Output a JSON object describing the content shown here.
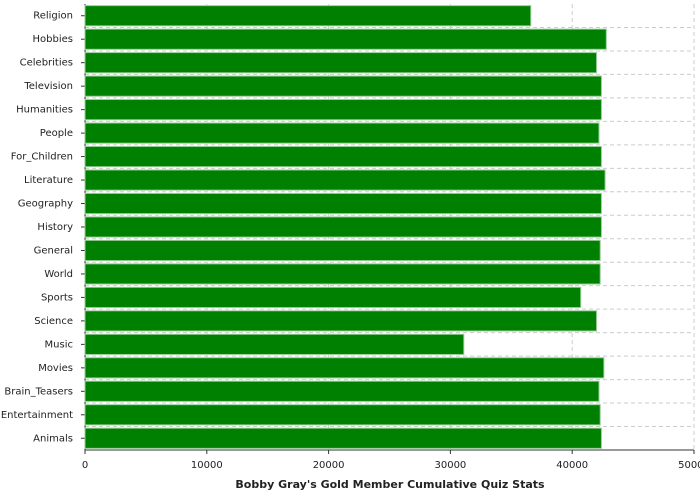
{
  "chart_data": {
    "type": "bar",
    "orientation": "horizontal",
    "title": "Bobby Gray's Gold Member Cumulative Quiz Stats",
    "categories": [
      "Religion",
      "Hobbies",
      "Celebrities",
      "Television",
      "Humanities",
      "People",
      "For_Children",
      "Literature",
      "Geography",
      "History",
      "General",
      "World",
      "Sports",
      "Science",
      "Music",
      "Movies",
      "Brain_Teasers",
      "Entertainment",
      "Animals"
    ],
    "values": [
      36600,
      42800,
      42000,
      42400,
      42400,
      42200,
      42400,
      42700,
      42400,
      42400,
      42300,
      42300,
      40700,
      42000,
      31100,
      42600,
      42200,
      42300,
      42400
    ],
    "color": "#008000",
    "xlim": [
      0,
      50000
    ],
    "xticks": [
      0,
      10000,
      20000,
      30000,
      40000,
      50000
    ],
    "grid": true
  }
}
